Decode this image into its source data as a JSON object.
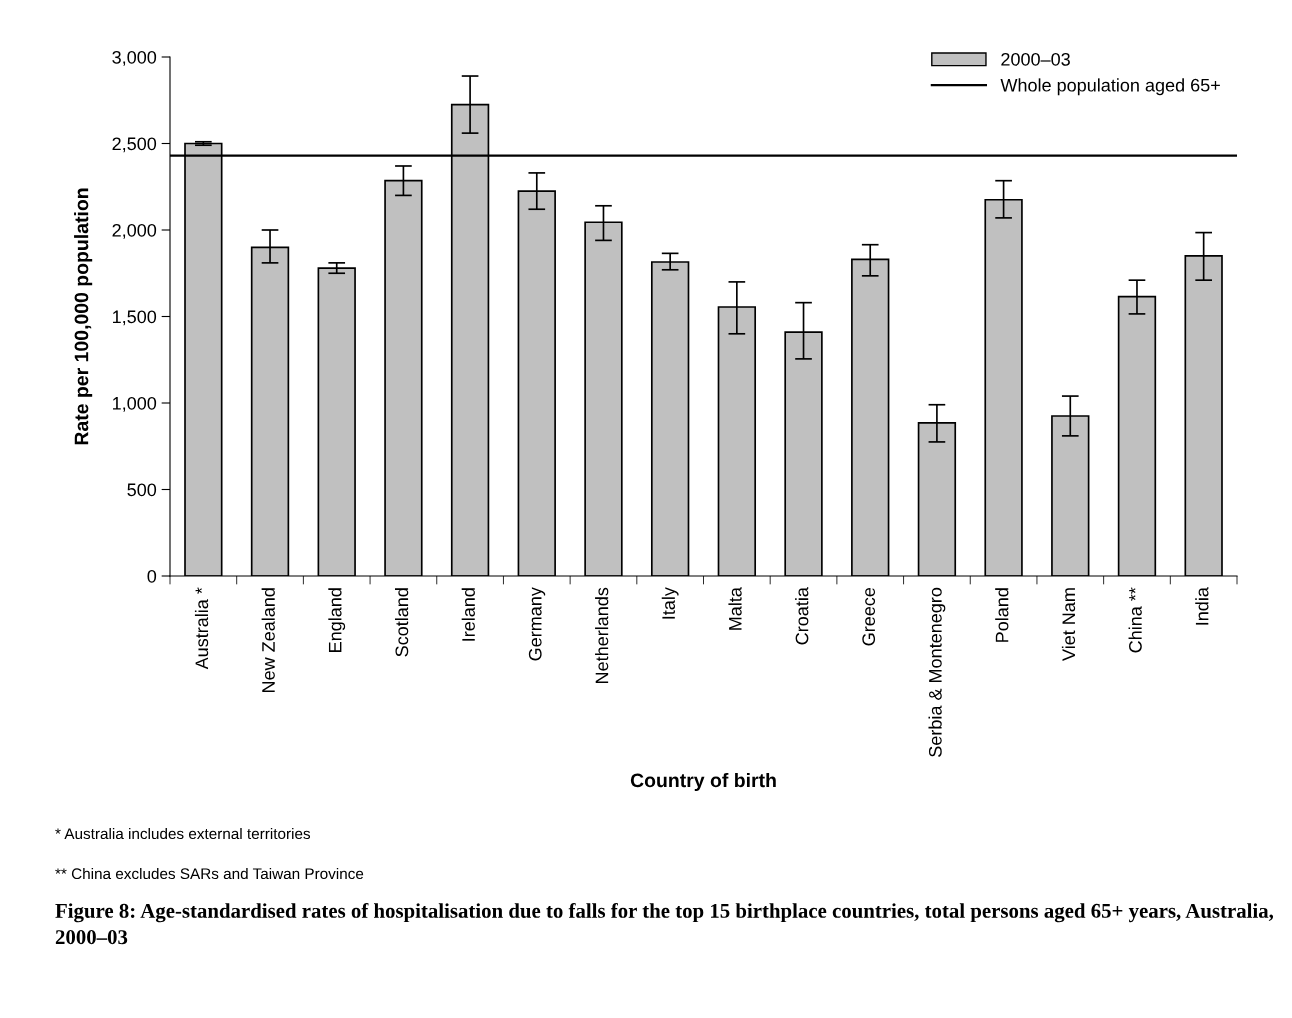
{
  "chart_data": {
    "type": "bar",
    "categories": [
      "Australia *",
      "New Zealand",
      "England",
      "Scotland",
      "Ireland",
      "Germany",
      "Netherlands",
      "Italy",
      "Malta",
      "Croatia",
      "Greece",
      "Serbia & Montenegro",
      "Poland",
      "Viet Nam",
      "China **",
      "India"
    ],
    "series": [
      {
        "name": "2000–03",
        "color": "#c0c0c0",
        "values": [
          2500,
          1900,
          1780,
          2285,
          2725,
          2225,
          2045,
          1815,
          1555,
          1410,
          1830,
          885,
          2175,
          925,
          1615,
          1850
        ],
        "errors": [
          [
            2490,
            2510
          ],
          [
            1810,
            2000
          ],
          [
            1750,
            1810
          ],
          [
            2200,
            2370
          ],
          [
            2560,
            2890
          ],
          [
            2120,
            2330
          ],
          [
            1940,
            2140
          ],
          [
            1770,
            1865
          ],
          [
            1400,
            1700
          ],
          [
            1255,
            1580
          ],
          [
            1735,
            1915
          ],
          [
            775,
            990
          ],
          [
            2070,
            2285
          ],
          [
            810,
            1040
          ],
          [
            1515,
            1710
          ],
          [
            1710,
            1985
          ]
        ]
      }
    ],
    "ylim": [
      0,
      3000
    ],
    "yticks": [
      0,
      {
        "value": 500,
        "label": "500"
      },
      {
        "value": 1000,
        "label": "1,000"
      },
      {
        "value": 1500,
        "label": "1,500"
      },
      {
        "value": 2000,
        "label": "2,000"
      },
      {
        "value": 2500,
        "label": "2,500"
      },
      {
        "value": 3000,
        "label": "3,000"
      }
    ],
    "ref_lines": [
      {
        "axis": "y",
        "value": 2430,
        "label": "Whole population aged 65+",
        "color": "#000000",
        "line_style": "solid"
      }
    ],
    "xlabel": "Country of birth",
    "ylabel": "Rate per 100,000 population",
    "title": "Figure 8: Age-standardised rates of hospitalisation due to falls for the top 15 birthplace countries, total persons aged 65+ years, Australia, 2000–03",
    "annotations": [
      "* Australia includes external territories",
      "** China excludes SARs and Taiwan Province"
    ],
    "legend": "top right",
    "grid": false
  }
}
